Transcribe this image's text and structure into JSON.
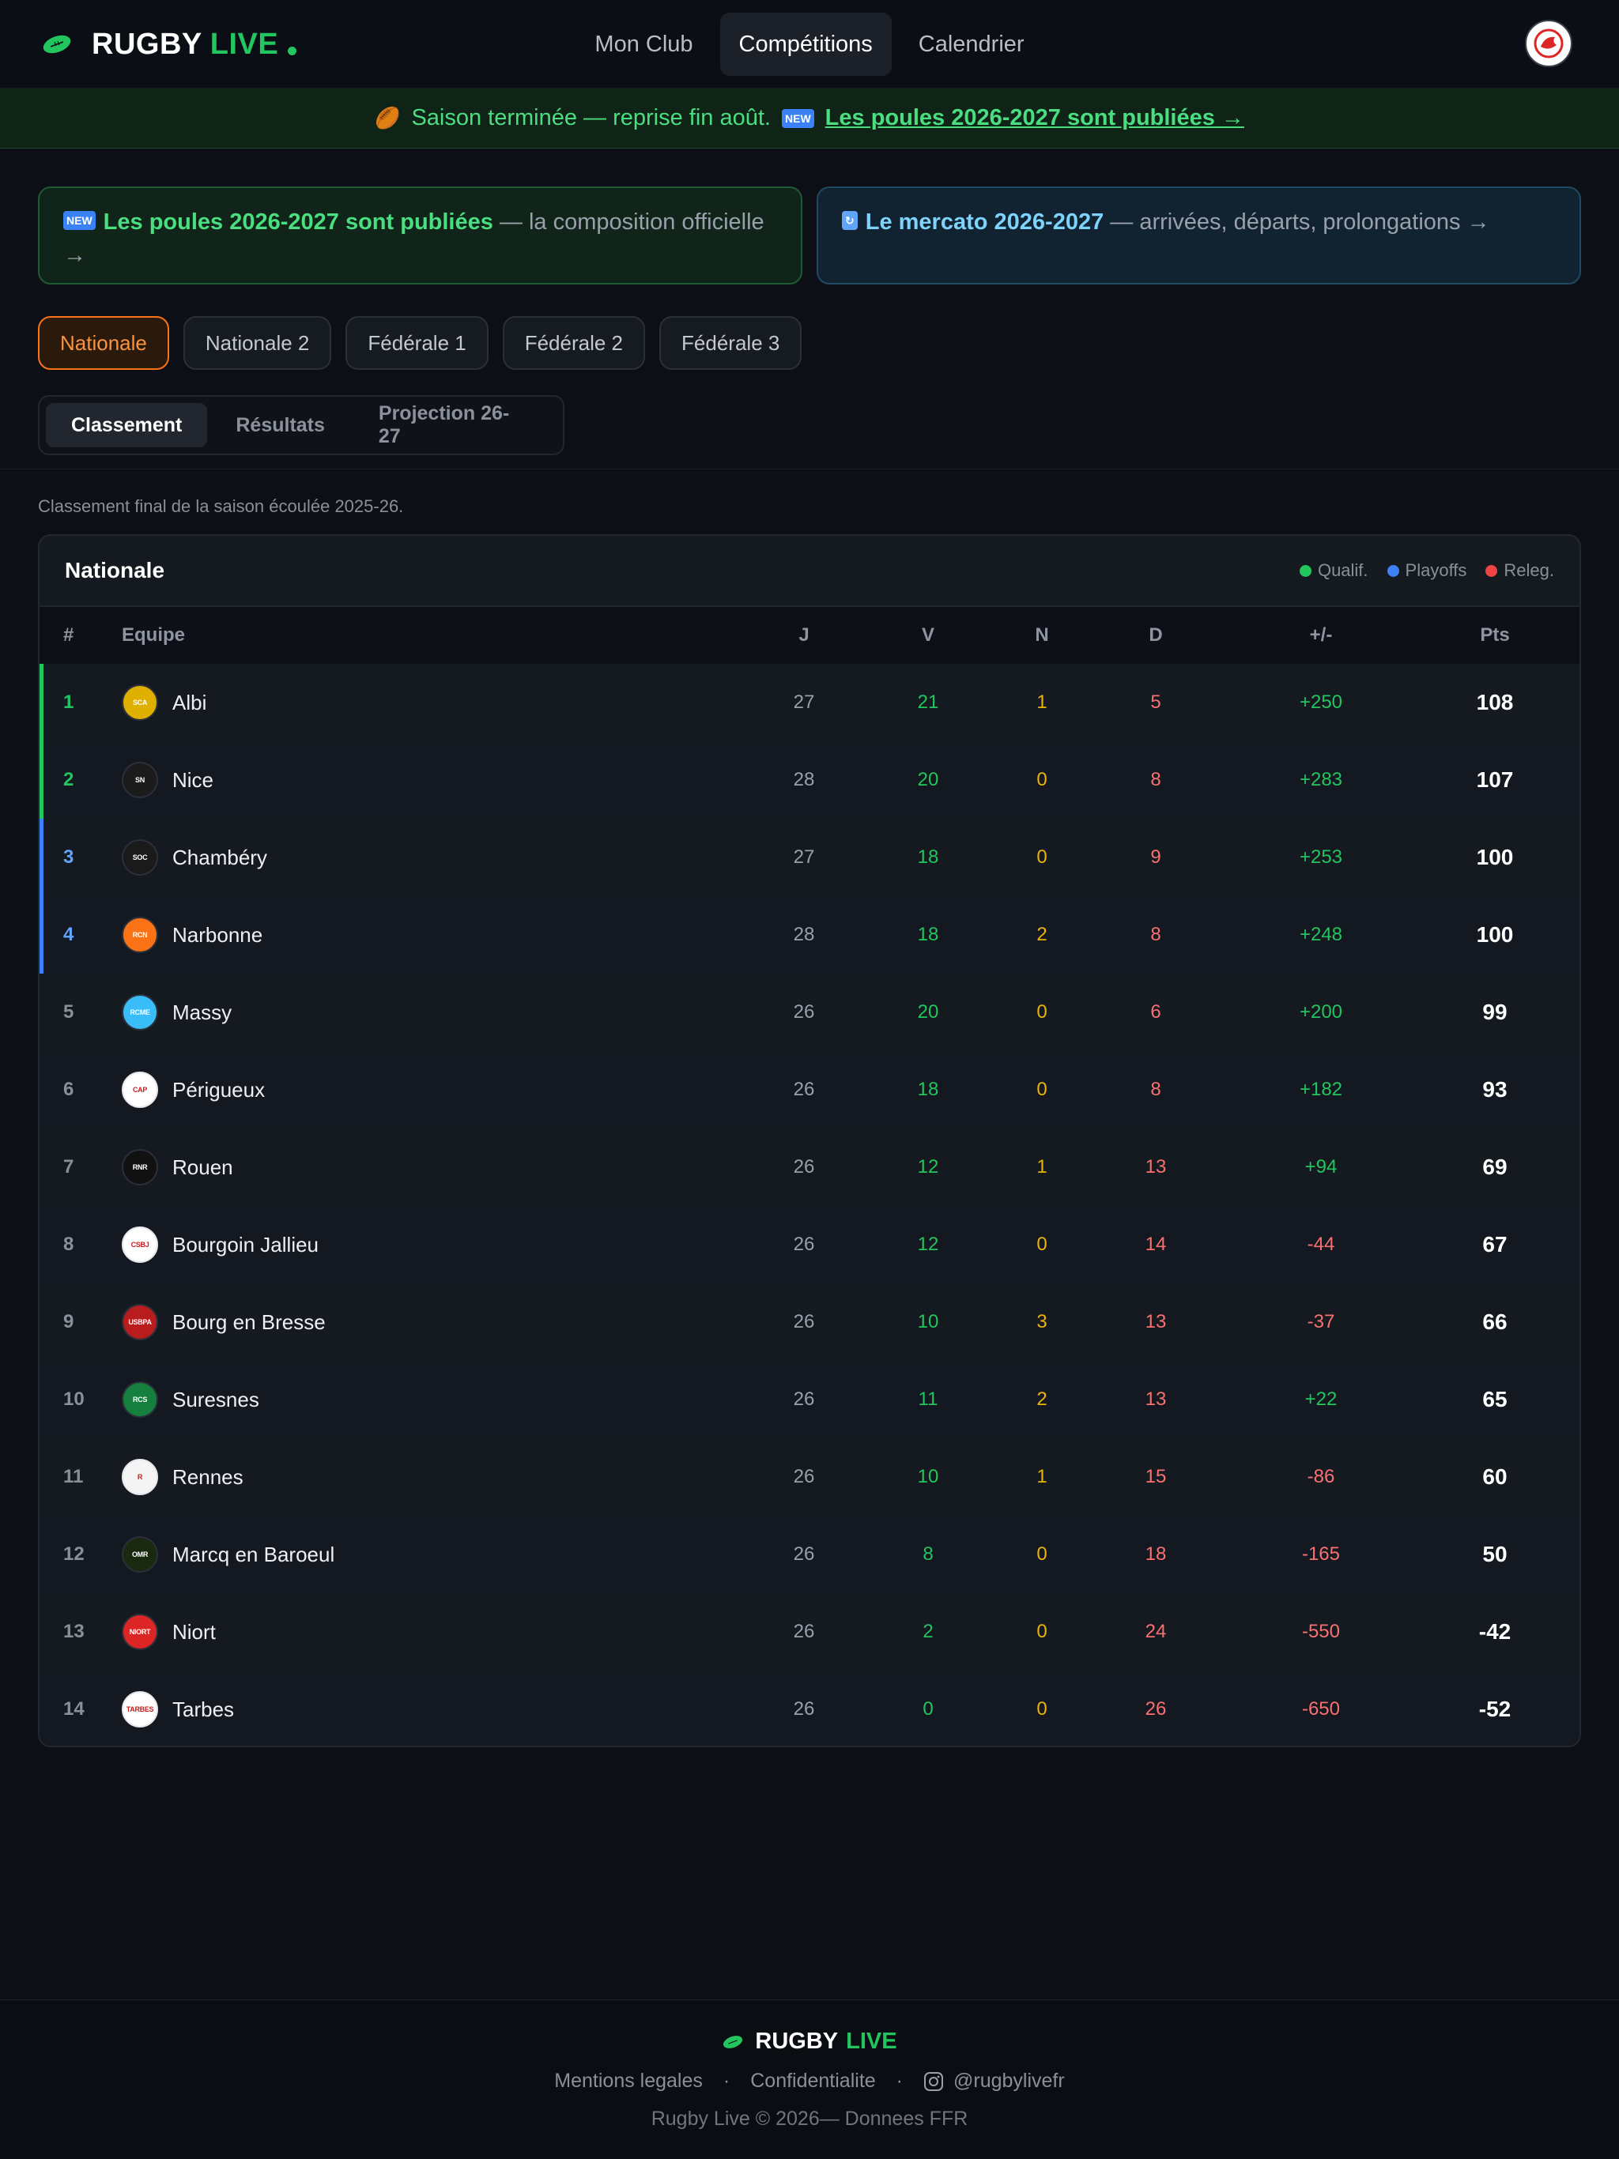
{
  "brand": {
    "word1": "RUGBY",
    "word2": "LIVE"
  },
  "nav": {
    "items": [
      {
        "label": "Mon Club",
        "active": false
      },
      {
        "label": "Compétitions",
        "active": true
      },
      {
        "label": "Calendrier",
        "active": false
      }
    ]
  },
  "banner": {
    "text": "Saison terminée — reprise fin août.",
    "new_badge": "NEW",
    "link": "Les poules 2026-2027 sont publiées →"
  },
  "cards": [
    {
      "badge": "NEW",
      "strong": "Les poules 2026-2027 sont publiées",
      "rest": " — la composition officielle →"
    },
    {
      "badge": "↻",
      "strong": "Le mercato 2026-2027",
      "rest": " — arrivées, départs, prolongations →"
    }
  ],
  "leagues": [
    {
      "label": "Nationale",
      "active": true
    },
    {
      "label": "Nationale 2",
      "active": false
    },
    {
      "label": "Fédérale 1",
      "active": false
    },
    {
      "label": "Fédérale 2",
      "active": false
    },
    {
      "label": "Fédérale 3",
      "active": false
    }
  ],
  "subtabs": [
    {
      "label": "Classement",
      "active": true
    },
    {
      "label": "Résultats",
      "active": false
    },
    {
      "label": "Projection 26-27",
      "active": false
    }
  ],
  "caption": "Classement final de la saison écoulée 2025-26.",
  "table": {
    "title": "Nationale",
    "legend": [
      {
        "label": "Qualif.",
        "color": "#22c55e"
      },
      {
        "label": "Playoffs",
        "color": "#3b82f6"
      },
      {
        "label": "Releg.",
        "color": "#ef4444"
      }
    ],
    "columns": {
      "rank": "#",
      "team": "Equipe",
      "j": "J",
      "v": "V",
      "n": "N",
      "d": "D",
      "diff": "+/-",
      "pts": "Pts"
    },
    "rows": [
      {
        "rank": "1",
        "team": "Albi",
        "j": "27",
        "v": "21",
        "n": "1",
        "d": "5",
        "diff": "+250",
        "pts": "108",
        "zone": "qualif",
        "crest_color": "#e0b000",
        "crest_text": "SCA"
      },
      {
        "rank": "2",
        "team": "Nice",
        "j": "28",
        "v": "20",
        "n": "0",
        "d": "8",
        "diff": "+283",
        "pts": "107",
        "zone": "qualif",
        "crest_color": "#1b1b1b",
        "crest_text": "SN"
      },
      {
        "rank": "3",
        "team": "Chambéry",
        "j": "27",
        "v": "18",
        "n": "0",
        "d": "9",
        "diff": "+253",
        "pts": "100",
        "zone": "playoffs",
        "crest_color": "#1a1a1a",
        "crest_text": "SOC"
      },
      {
        "rank": "4",
        "team": "Narbonne",
        "j": "28",
        "v": "18",
        "n": "2",
        "d": "8",
        "diff": "+248",
        "pts": "100",
        "zone": "playoffs",
        "crest_color": "#f97316",
        "crest_text": "RCN"
      },
      {
        "rank": "5",
        "team": "Massy",
        "j": "26",
        "v": "20",
        "n": "0",
        "d": "6",
        "diff": "+200",
        "pts": "99",
        "zone": "none",
        "crest_color": "#38bdf8",
        "crest_text": "RCME"
      },
      {
        "rank": "6",
        "team": "Périgueux",
        "j": "26",
        "v": "18",
        "n": "0",
        "d": "8",
        "diff": "+182",
        "pts": "93",
        "zone": "none",
        "crest_color": "#ffffff",
        "crest_text": "CAP"
      },
      {
        "rank": "7",
        "team": "Rouen",
        "j": "26",
        "v": "12",
        "n": "1",
        "d": "13",
        "diff": "+94",
        "pts": "69",
        "zone": "none",
        "crest_color": "#111111",
        "crest_text": "RNR"
      },
      {
        "rank": "8",
        "team": "Bourgoin Jallieu",
        "j": "26",
        "v": "12",
        "n": "0",
        "d": "14",
        "diff": "-44",
        "pts": "67",
        "zone": "none",
        "crest_color": "#ffffff",
        "crest_text": "CSBJ"
      },
      {
        "rank": "9",
        "team": "Bourg en Bresse",
        "j": "26",
        "v": "10",
        "n": "3",
        "d": "13",
        "diff": "-37",
        "pts": "66",
        "zone": "none",
        "crest_color": "#b91c1c",
        "crest_text": "USBPA"
      },
      {
        "rank": "10",
        "team": "Suresnes",
        "j": "26",
        "v": "11",
        "n": "2",
        "d": "13",
        "diff": "+22",
        "pts": "65",
        "zone": "none",
        "crest_color": "#15803d",
        "crest_text": "RCS"
      },
      {
        "rank": "11",
        "team": "Rennes",
        "j": "26",
        "v": "10",
        "n": "1",
        "d": "15",
        "diff": "-86",
        "pts": "60",
        "zone": "none",
        "crest_color": "#f4f4f4",
        "crest_text": "R"
      },
      {
        "rank": "12",
        "team": "Marcq en Baroeul",
        "j": "26",
        "v": "8",
        "n": "0",
        "d": "18",
        "diff": "-165",
        "pts": "50",
        "zone": "none",
        "crest_color": "#1a2a10",
        "crest_text": "OMR"
      },
      {
        "rank": "13",
        "team": "Niort",
        "j": "26",
        "v": "2",
        "n": "0",
        "d": "24",
        "diff": "-550",
        "pts": "-42",
        "zone": "none",
        "crest_color": "#dc2626",
        "crest_text": "NIORT"
      },
      {
        "rank": "14",
        "team": "Tarbes",
        "j": "26",
        "v": "0",
        "n": "0",
        "d": "26",
        "diff": "-650",
        "pts": "-52",
        "zone": "none",
        "crest_color": "#ffffff",
        "crest_text": "TARBES"
      }
    ]
  },
  "footer": {
    "brand1": "RUGBY",
    "brand2": "LIVE",
    "links": [
      "Mentions legales",
      "Confidentialite"
    ],
    "social": "@rugbylivefr",
    "copyright": "Rugby Live © 2026— Donnees FFR"
  },
  "colors": {
    "green": "#22c55e",
    "blue": "#3b82f6",
    "red": "#ef4444",
    "yellow": "#eab308",
    "accent_orange": "#f97316"
  }
}
